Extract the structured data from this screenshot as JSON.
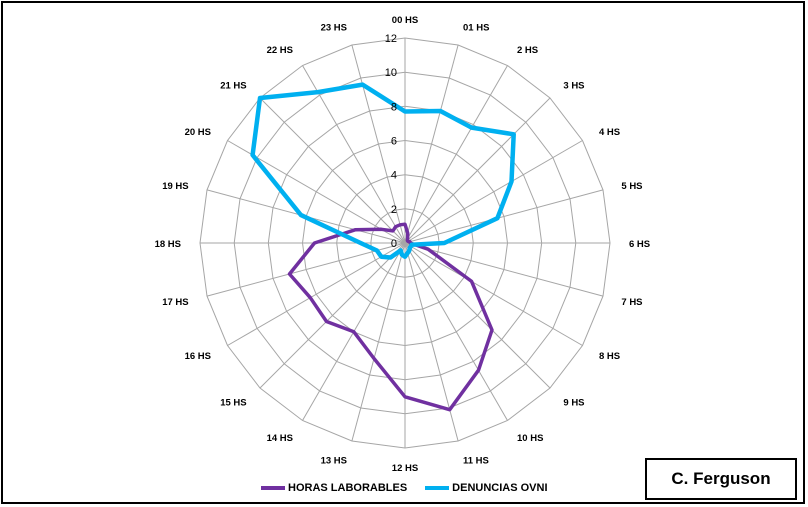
{
  "chart_data": {
    "type": "radar",
    "categories": [
      "00 HS",
      "01 HS",
      "2 HS",
      "3 HS",
      "4 HS",
      "5 HS",
      "6 HS",
      "7 HS",
      "8 HS",
      "9 HS",
      "10 HS",
      "11 HS",
      "12 HS",
      "13 HS",
      "14 HS",
      "15 HS",
      "16 HS",
      "17 HS",
      "18 HS",
      "19 HS",
      "20 HS",
      "21 HS",
      "22 HS",
      "23 HS"
    ],
    "r_ticks": [
      "0",
      "2",
      "4",
      "6",
      "8",
      "10",
      "12"
    ],
    "r_range": [
      0,
      12
    ],
    "grid": true,
    "legend_position": "bottom",
    "series": [
      {
        "name": "HORAS LABORABLES",
        "color": "#7030A0",
        "values": [
          1.1,
          0.6,
          0.3,
          0.2,
          0.2,
          0.3,
          0.3,
          1.4,
          4.5,
          7.2,
          8.6,
          10.1,
          9.0,
          7.0,
          6.0,
          6.5,
          6.4,
          7.0,
          5.3,
          3.0,
          1.6,
          1.0,
          1.1,
          1.1
        ]
      },
      {
        "name": "DENUNCIAS OVNI",
        "color": "#00B0F0",
        "values": [
          7.7,
          8.0,
          7.8,
          9.0,
          7.2,
          5.6,
          2.3,
          0.4,
          0.4,
          0.4,
          0.5,
          0.6,
          0.8,
          0.7,
          0.5,
          1.2,
          1.6,
          1.7,
          2.6,
          6.3,
          10.3,
          12.0,
          10.2,
          9.6
        ]
      }
    ]
  },
  "signature": "C. Ferguson"
}
